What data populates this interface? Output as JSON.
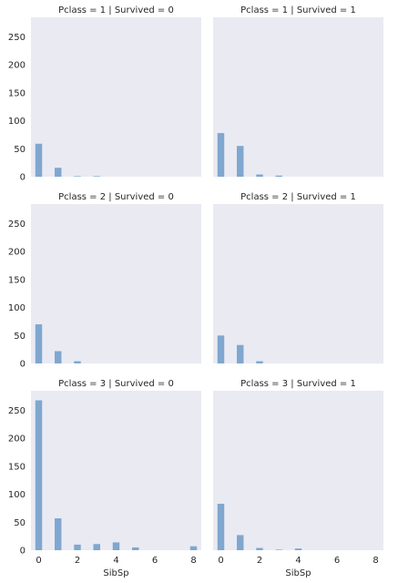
{
  "colors": {
    "panel_bg": "#EAEAF2",
    "bar": "#7FA7CF",
    "text": "#262626"
  },
  "chart_data": {
    "type": "bar",
    "kind": "faceted histogram",
    "xlabel": "SibSp",
    "xlim": [
      -0.4,
      8.4
    ],
    "ylim": [
      0,
      285
    ],
    "x_ticks": [
      0,
      2,
      4,
      6,
      8
    ],
    "y_ticks": [
      0,
      50,
      100,
      150,
      200,
      250
    ],
    "bin_width": 0.35,
    "grid": false,
    "panels": [
      {
        "title": "Pclass = 1 | Survived = 0",
        "bars": [
          {
            "x": 0,
            "count": 59
          },
          {
            "x": 1,
            "count": 16
          },
          {
            "x": 2,
            "count": 1
          },
          {
            "x": 3,
            "count": 1
          }
        ]
      },
      {
        "title": "Pclass = 1 | Survived = 1",
        "bars": [
          {
            "x": 0,
            "count": 78
          },
          {
            "x": 1,
            "count": 55
          },
          {
            "x": 2,
            "count": 4
          },
          {
            "x": 3,
            "count": 2
          }
        ]
      },
      {
        "title": "Pclass = 2 | Survived = 0",
        "bars": [
          {
            "x": 0,
            "count": 70
          },
          {
            "x": 1,
            "count": 22
          },
          {
            "x": 2,
            "count": 4
          }
        ]
      },
      {
        "title": "Pclass = 2 | Survived = 1",
        "bars": [
          {
            "x": 0,
            "count": 50
          },
          {
            "x": 1,
            "count": 33
          },
          {
            "x": 2,
            "count": 4
          }
        ]
      },
      {
        "title": "Pclass = 3 | Survived = 0",
        "bars": [
          {
            "x": 0,
            "count": 268
          },
          {
            "x": 1,
            "count": 57
          },
          {
            "x": 2,
            "count": 10
          },
          {
            "x": 3,
            "count": 11
          },
          {
            "x": 4,
            "count": 14
          },
          {
            "x": 5,
            "count": 5
          },
          {
            "x": 8,
            "count": 7
          }
        ]
      },
      {
        "title": "Pclass = 3 | Survived = 1",
        "bars": [
          {
            "x": 0,
            "count": 83
          },
          {
            "x": 1,
            "count": 27
          },
          {
            "x": 2,
            "count": 4
          },
          {
            "x": 3,
            "count": 1
          },
          {
            "x": 4,
            "count": 3
          }
        ]
      }
    ]
  }
}
